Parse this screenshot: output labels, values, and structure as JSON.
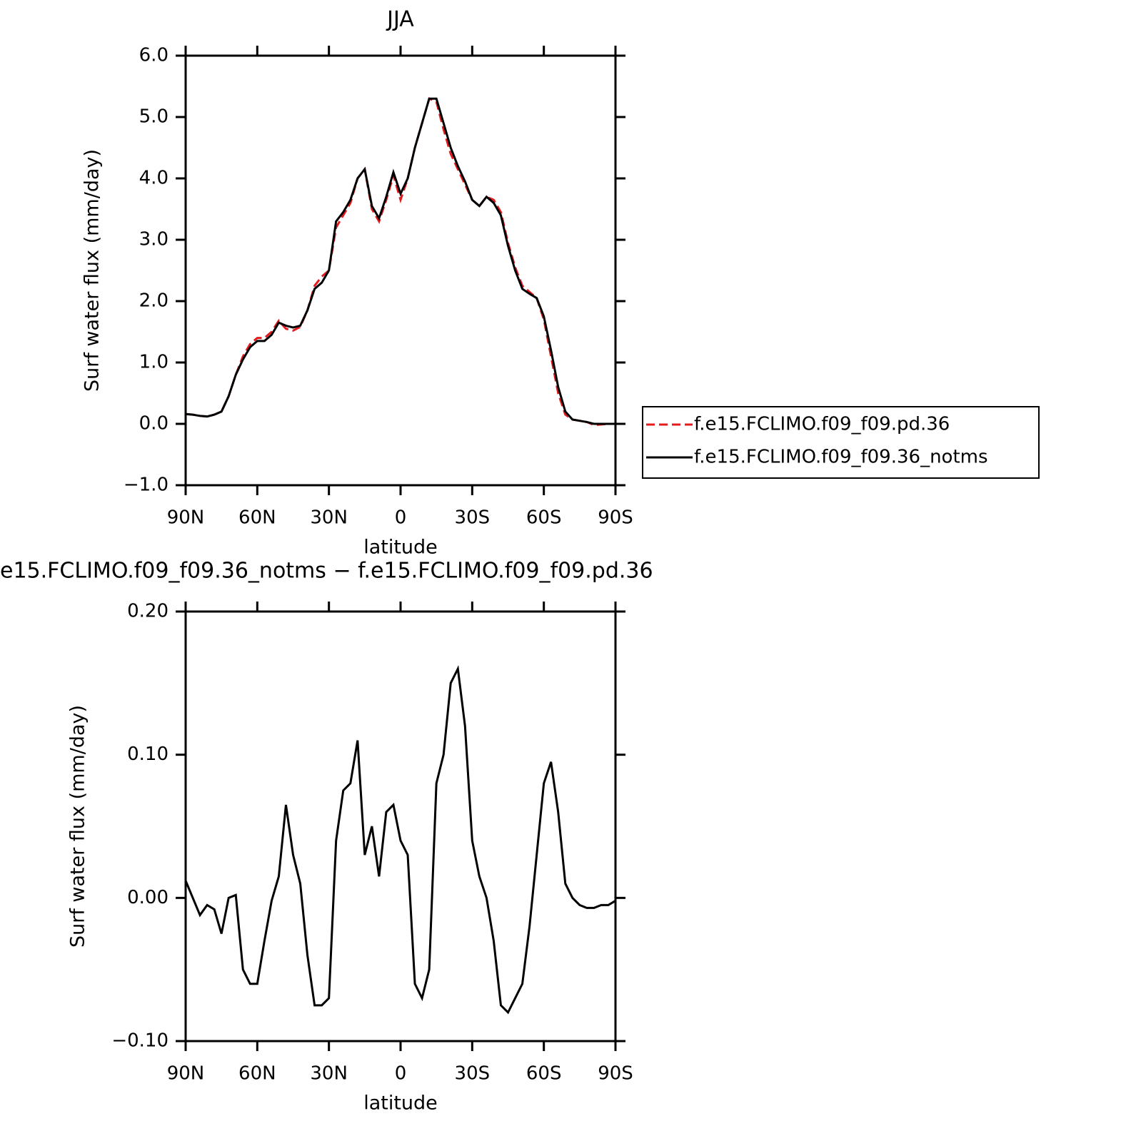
{
  "chart_data": [
    {
      "type": "line",
      "title": "JJA",
      "xlabel": "latitude",
      "ylabel": "Surf water flux (mm/day)",
      "xlim": [
        90,
        -90
      ],
      "xticks": [
        {
          "value": 90,
          "label": "90N"
        },
        {
          "value": 60,
          "label": "60N"
        },
        {
          "value": 30,
          "label": "30N"
        },
        0,
        {
          "value": -30,
          "label": "30S"
        },
        {
          "value": -60,
          "label": "60S"
        },
        {
          "value": -90,
          "label": "90S"
        }
      ],
      "ylim": [
        -1,
        6
      ],
      "yticks": [
        {
          "value": -1,
          "label": "−1.0"
        },
        {
          "value": 0,
          "label": "0.0"
        },
        {
          "value": 1,
          "label": "1.0"
        },
        {
          "value": 2,
          "label": "2.0"
        },
        {
          "value": 3,
          "label": "3.0"
        },
        {
          "value": 4,
          "label": "4.0"
        },
        {
          "value": 5,
          "label": "5.0"
        },
        {
          "value": 6,
          "label": "6.0"
        }
      ],
      "legend": "right",
      "x": [
        90,
        87,
        84,
        81,
        78,
        75,
        72,
        69,
        66,
        63,
        60,
        57,
        54,
        51,
        48,
        45,
        42,
        39,
        36,
        33,
        30,
        27,
        24,
        21,
        18,
        15,
        12,
        9,
        6,
        3,
        0,
        -3,
        -6,
        -9,
        -12,
        -15,
        -18,
        -21,
        -24,
        -27,
        -30,
        -33,
        -36,
        -39,
        -42,
        -45,
        -48,
        -51,
        -54,
        -57,
        -60,
        -63,
        -66,
        -69,
        -72,
        -75,
        -78,
        -81,
        -84,
        -87,
        -90
      ],
      "series": [
        {
          "name": "f.e15.FCLIMO.f09_f09.pd.36",
          "color": "#e41a1c",
          "dash": "dashed",
          "values": [
            0.16,
            0.15,
            0.13,
            0.12,
            0.15,
            0.2,
            0.45,
            0.8,
            1.1,
            1.3,
            1.4,
            1.4,
            1.5,
            1.68,
            1.55,
            1.52,
            1.58,
            1.85,
            2.25,
            2.4,
            2.5,
            3.2,
            3.4,
            3.6,
            4.0,
            4.15,
            3.5,
            3.3,
            3.65,
            4.05,
            3.65,
            4.0,
            4.5,
            4.9,
            5.3,
            5.25,
            4.8,
            4.4,
            4.15,
            3.9,
            3.65,
            3.55,
            3.7,
            3.65,
            3.45,
            2.95,
            2.55,
            2.25,
            2.15,
            2.05,
            1.7,
            1.1,
            0.5,
            0.15,
            0.07,
            0.05,
            0.03,
            -0.02,
            -0.01,
            0.0,
            0.0
          ]
        },
        {
          "name": "f.e15.FCLIMO.f09_f09.36_notms",
          "color": "#000000",
          "dash": "solid",
          "values": [
            0.16,
            0.15,
            0.13,
            0.12,
            0.15,
            0.2,
            0.45,
            0.8,
            1.05,
            1.25,
            1.35,
            1.35,
            1.45,
            1.65,
            1.6,
            1.57,
            1.6,
            1.85,
            2.2,
            2.3,
            2.5,
            3.3,
            3.45,
            3.65,
            4.0,
            4.15,
            3.55,
            3.35,
            3.7,
            4.1,
            3.75,
            4.0,
            4.5,
            4.9,
            5.3,
            5.3,
            4.9,
            4.5,
            4.2,
            3.95,
            3.65,
            3.55,
            3.7,
            3.6,
            3.4,
            2.9,
            2.5,
            2.2,
            2.12,
            2.05,
            1.75,
            1.2,
            0.6,
            0.2,
            0.07,
            0.05,
            0.03,
            0.0,
            0.0,
            0.0,
            0.0
          ]
        }
      ]
    },
    {
      "type": "line",
      "title": "e15.FCLIMO.f09_f09.36_notms − f.e15.FCLIMO.f09_f09.pd.36",
      "xlabel": "latitude",
      "ylabel": "Surf water flux (mm/day)",
      "xlim": [
        90,
        -90
      ],
      "xticks": [
        {
          "value": 90,
          "label": "90N"
        },
        {
          "value": 60,
          "label": "60N"
        },
        {
          "value": 30,
          "label": "30N"
        },
        0,
        {
          "value": -30,
          "label": "30S"
        },
        {
          "value": -60,
          "label": "60S"
        },
        {
          "value": -90,
          "label": "90S"
        }
      ],
      "ylim": [
        -0.1,
        0.2
      ],
      "yticks": [
        {
          "value": -0.1,
          "label": "−0.10"
        },
        {
          "value": 0,
          "label": "0.00"
        },
        {
          "value": 0.1,
          "label": "0.10"
        },
        {
          "value": 0.2,
          "label": "0.20"
        }
      ],
      "x": [
        90,
        87,
        84,
        81,
        78,
        75,
        72,
        69,
        66,
        63,
        60,
        57,
        54,
        51,
        48,
        45,
        42,
        39,
        36,
        33,
        30,
        27,
        24,
        21,
        18,
        15,
        12,
        9,
        6,
        3,
        0,
        -3,
        -6,
        -9,
        -12,
        -15,
        -18,
        -21,
        -24,
        -27,
        -30,
        -33,
        -36,
        -39,
        -42,
        -45,
        -48,
        -51,
        -54,
        -57,
        -60,
        -63,
        -66,
        -69,
        -72,
        -75,
        -78,
        -81,
        -84,
        -87,
        -90
      ],
      "series": [
        {
          "color": "#000000",
          "dash": "solid",
          "values": [
            0.012,
            0.0,
            -0.012,
            -0.005,
            -0.008,
            -0.025,
            0.0,
            0.002,
            -0.05,
            -0.06,
            -0.06,
            -0.03,
            -0.002,
            0.015,
            0.065,
            0.03,
            0.01,
            -0.04,
            -0.075,
            -0.075,
            -0.07,
            0.04,
            0.075,
            0.08,
            0.11,
            0.03,
            0.05,
            0.015,
            0.06,
            0.065,
            0.04,
            0.03,
            -0.06,
            -0.07,
            -0.05,
            0.08,
            0.1,
            0.15,
            0.16,
            0.12,
            0.04,
            0.015,
            0.0,
            -0.03,
            -0.075,
            -0.08,
            -0.07,
            -0.06,
            -0.02,
            0.03,
            0.08,
            0.095,
            0.06,
            0.01,
            0.0,
            -0.005,
            -0.007,
            -0.007,
            -0.005,
            -0.005,
            -0.002
          ]
        }
      ]
    }
  ]
}
